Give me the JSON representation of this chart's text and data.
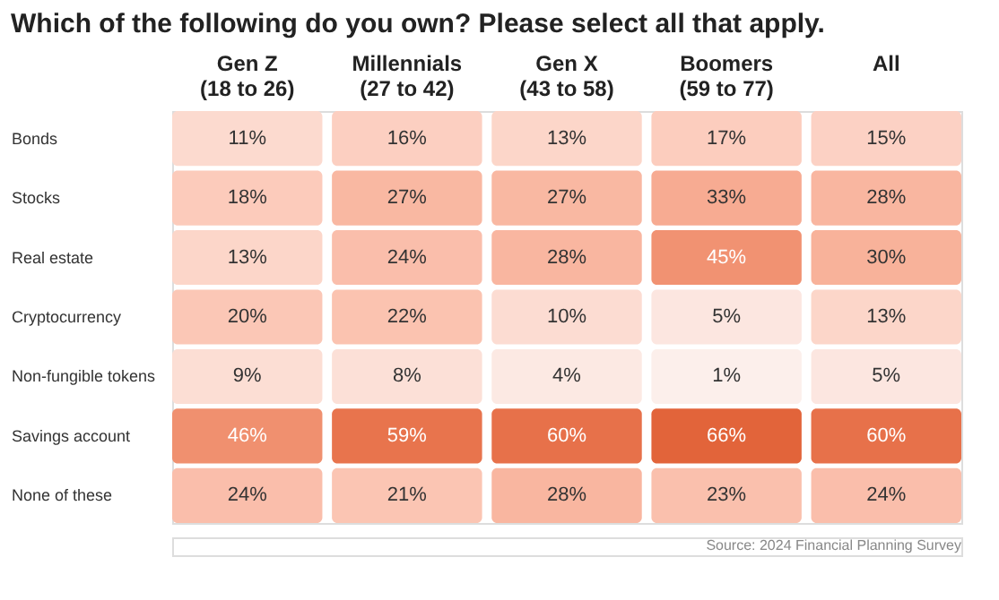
{
  "chart_data": {
    "type": "heatmap",
    "title": "Which of the following do you own? Please select all that apply.",
    "categories": [
      "Gen Z\n(18 to 26)",
      "Millennials\n(27 to 42)",
      "Gen X\n(43 to 58)",
      "Boomers\n(59 to 77)",
      "All"
    ],
    "y_categories": [
      "Bonds",
      "Stocks",
      "Real estate",
      "Cryptocurrency",
      "Non-fungible tokens",
      "Savings account",
      "None of these"
    ],
    "cells": [
      [
        11,
        16,
        13,
        17,
        15
      ],
      [
        18,
        27,
        27,
        33,
        28
      ],
      [
        13,
        24,
        28,
        45,
        30
      ],
      [
        20,
        22,
        10,
        5,
        13
      ],
      [
        9,
        8,
        4,
        1,
        5
      ],
      [
        46,
        59,
        60,
        66,
        60
      ],
      [
        24,
        21,
        28,
        23,
        24
      ]
    ],
    "cell_labels": [
      [
        "11%",
        "16%",
        "13%",
        "17%",
        "15%"
      ],
      [
        "18%",
        "27%",
        "27%",
        "33%",
        "28%"
      ],
      [
        "13%",
        "24%",
        "28%",
        "45%",
        "30%"
      ],
      [
        "20%",
        "22%",
        "10%",
        "5%",
        "13%"
      ],
      [
        "9%",
        "8%",
        "4%",
        "1%",
        "5%"
      ],
      [
        "46%",
        "59%",
        "60%",
        "66%",
        "60%"
      ],
      [
        "24%",
        "21%",
        "28%",
        "23%",
        "24%"
      ]
    ],
    "annotations": [
      "Source: 2024 Financial Planning Survey"
    ]
  }
}
